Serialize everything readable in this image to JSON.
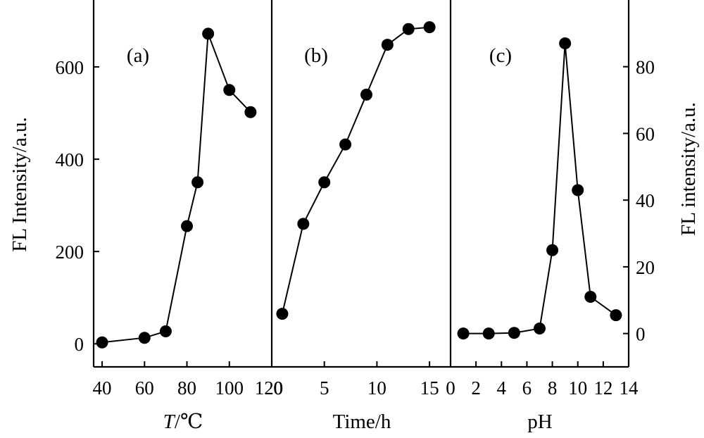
{
  "chart_data": [
    {
      "type": "line",
      "panel_label": "(a)",
      "xlabel_italic": "T",
      "xlabel_rest": "/℃",
      "ylabel": "FL Intensity/a.u.",
      "xlim": [
        36,
        120
      ],
      "ylim": [
        -50,
        745
      ],
      "xticks": [
        40,
        60,
        80,
        100,
        120
      ],
      "xtick_labels": [
        "40",
        "60",
        "80",
        "100",
        "120"
      ],
      "yticks": [
        0,
        200,
        400,
        600
      ],
      "ytick_labels": [
        "0",
        "200",
        "400",
        "600"
      ],
      "x": [
        40,
        60,
        70,
        80,
        85,
        90,
        100,
        110
      ],
      "y": [
        3,
        13,
        27,
        255,
        350,
        672,
        550,
        502
      ]
    },
    {
      "type": "line",
      "panel_label": "(b)",
      "xlabel": "Time/h",
      "xlim": [
        0,
        17
      ],
      "ylim": [
        -50,
        745
      ],
      "xticks": [
        0,
        5,
        10,
        15
      ],
      "xtick_labels": [
        "0",
        "5",
        "10",
        "15"
      ],
      "x": [
        1,
        3,
        5,
        7,
        9,
        11,
        13,
        15
      ],
      "y": [
        65,
        260,
        350,
        432,
        540,
        648,
        682,
        686
      ]
    },
    {
      "type": "line",
      "panel_label": "(c)",
      "xlabel": "pH",
      "ylabel": "FL intensity/a.u.",
      "xlim": [
        0,
        14
      ],
      "ylim": [
        -10,
        100
      ],
      "xticks": [
        0,
        2,
        4,
        6,
        8,
        10,
        12,
        14
      ],
      "xtick_labels": [
        "0",
        "2",
        "4",
        "6",
        "8",
        "10",
        "12",
        "14"
      ],
      "yticks": [
        0,
        20,
        40,
        60,
        80
      ],
      "ytick_labels": [
        "0",
        "20",
        "40",
        "60",
        "80"
      ],
      "x": [
        1,
        3,
        5,
        7,
        8,
        9,
        10,
        11,
        13
      ],
      "y": [
        0,
        0,
        0.2,
        1.5,
        25,
        87,
        43,
        11,
        5.5
      ]
    }
  ]
}
